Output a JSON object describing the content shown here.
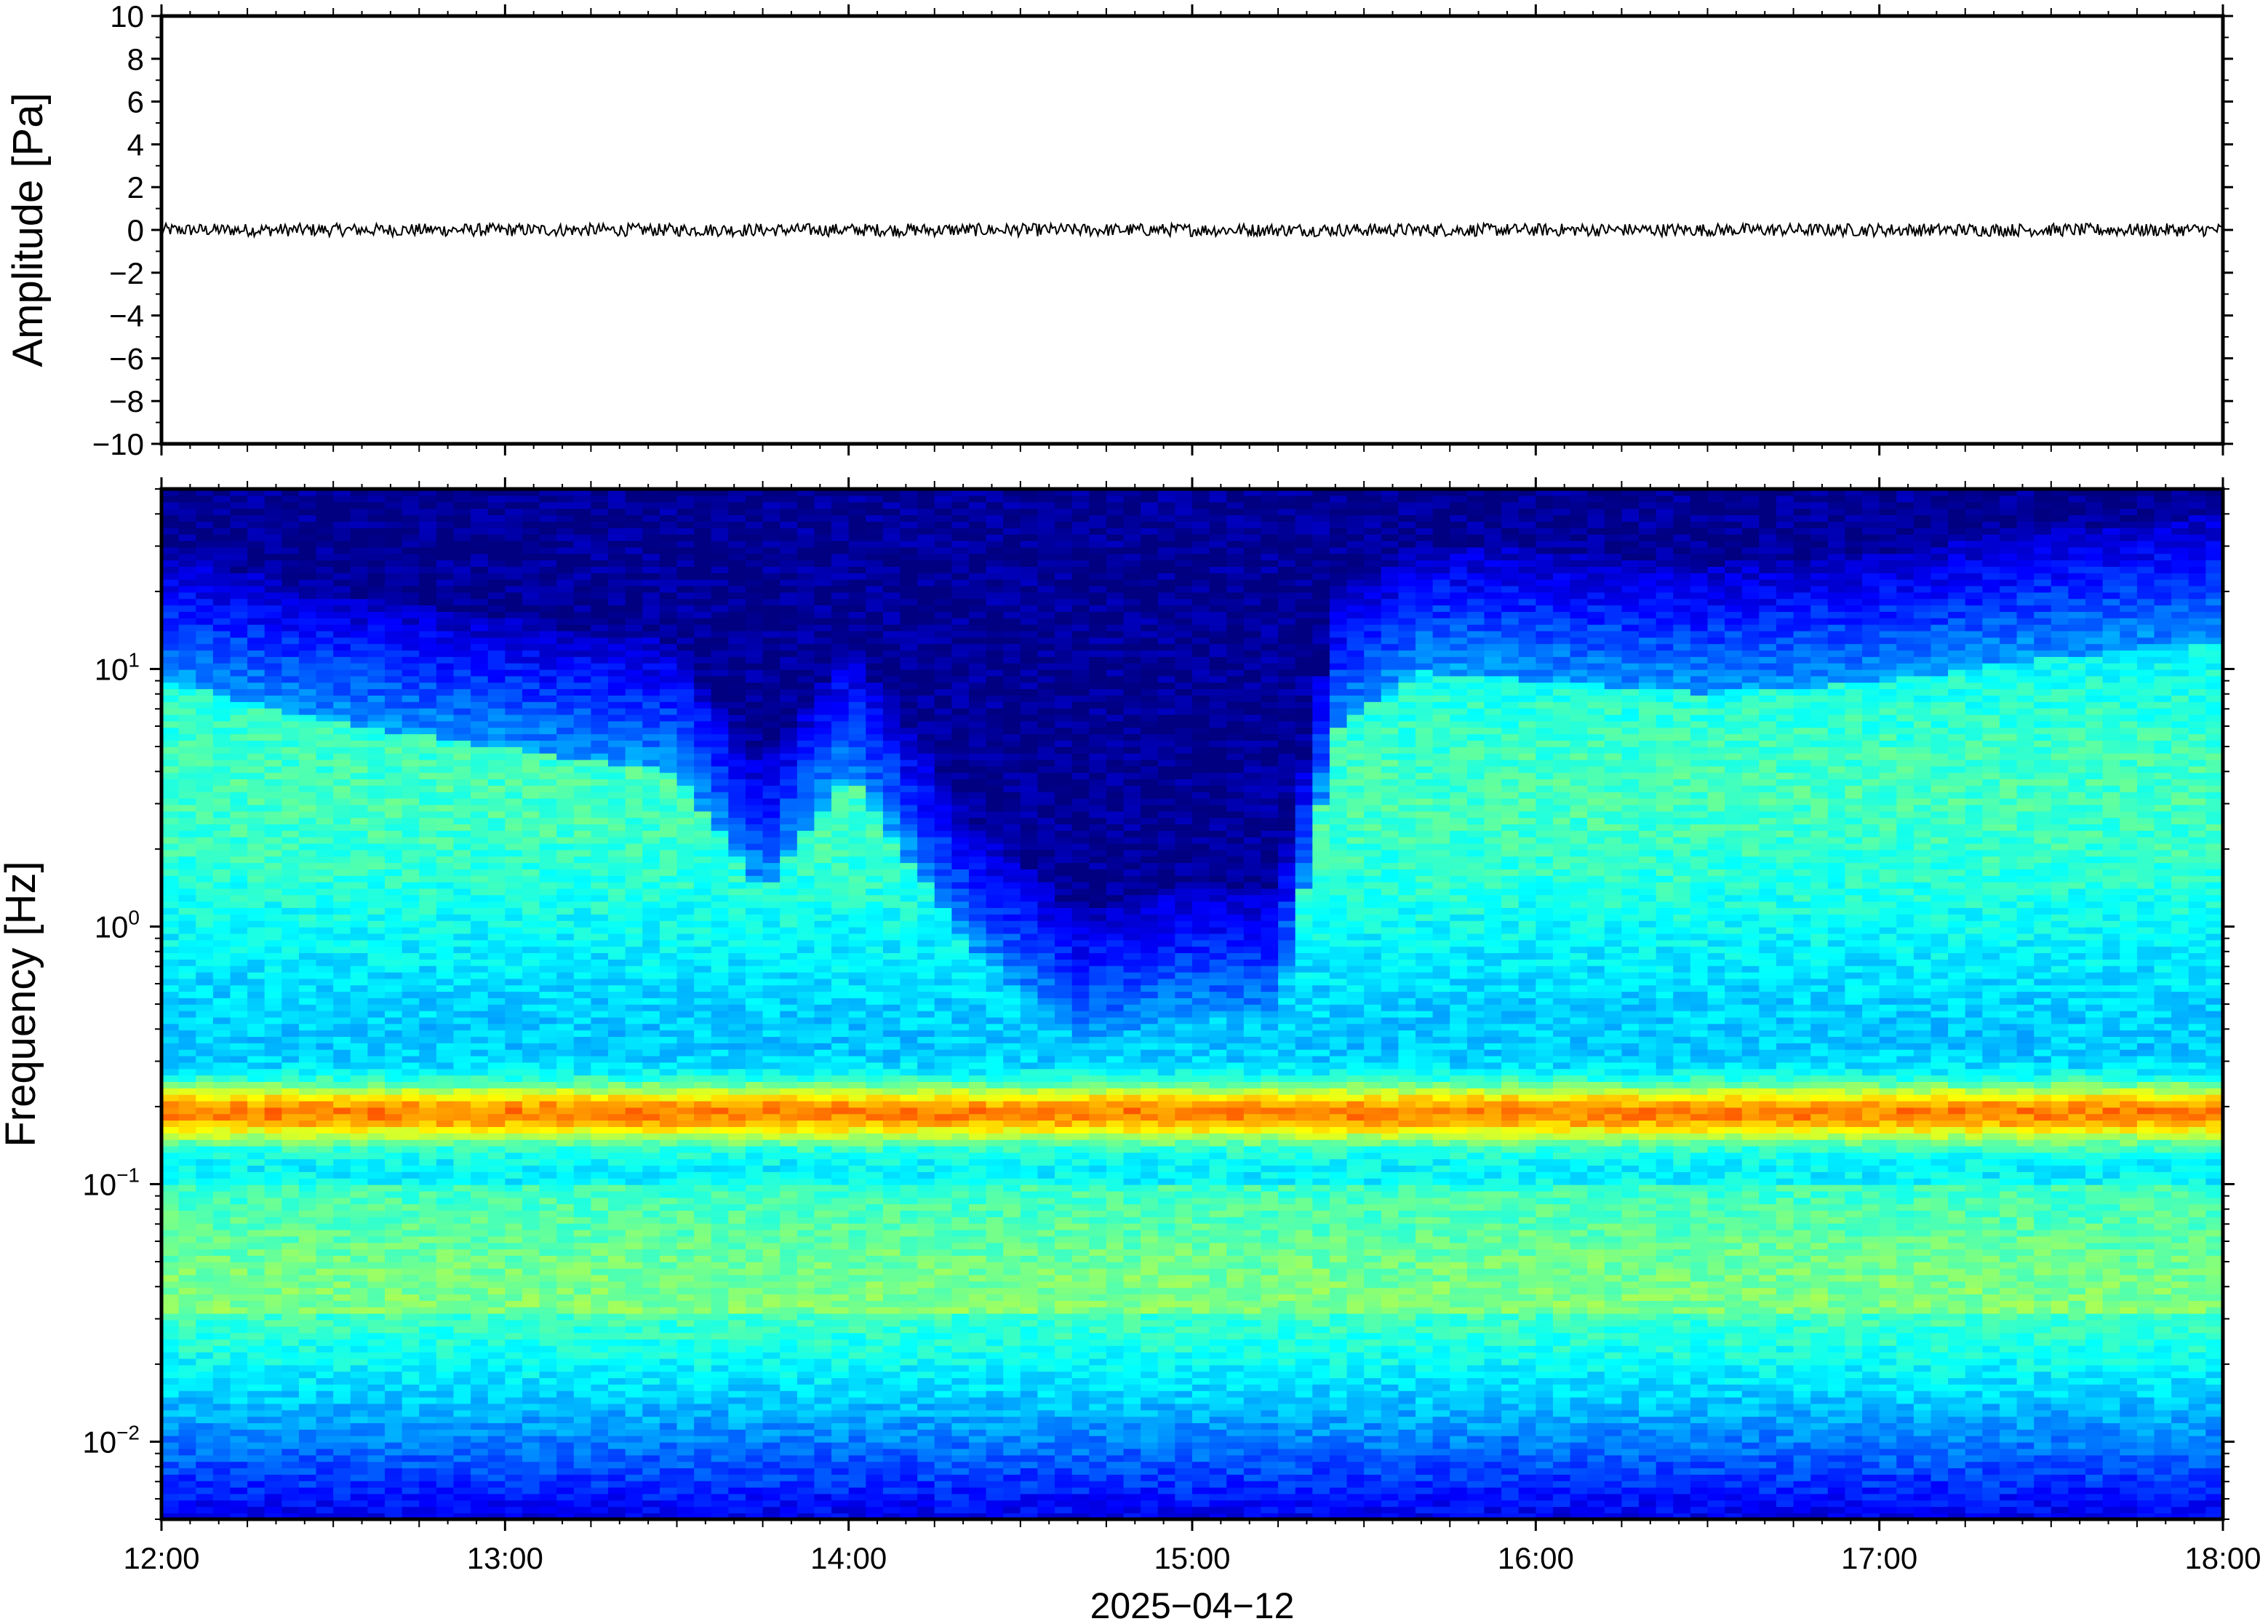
{
  "chart_data": [
    {
      "type": "line",
      "ylabel": "Amplitude [Pa]",
      "ylim": [
        -10,
        10
      ],
      "y_ticks": [
        "10",
        "8",
        "6",
        "4",
        "2",
        "0",
        "−2",
        "−4",
        "−6",
        "−8",
        "−10"
      ],
      "y_tick_values": [
        10,
        8,
        6,
        4,
        2,
        0,
        -2,
        -4,
        -6,
        -8,
        -10
      ],
      "xlim": [
        "12:00",
        "18:00"
      ],
      "series": [
        {
          "x": [
            "12:00",
            "13:00",
            "14:00",
            "15:00",
            "16:00",
            "17:00",
            "18:00"
          ],
          "y": [
            0,
            0,
            0,
            0,
            0,
            0,
            0
          ],
          "noise_amplitude": 0.3,
          "color": "#000000"
        }
      ],
      "grid": false
    },
    {
      "type": "heatmap",
      "ylabel": "Frequency [Hz]",
      "y_scale": "log",
      "ylim": [
        0.005,
        50
      ],
      "y_ticks": [
        {
          "base": "10",
          "exp": "−2",
          "value": 0.01
        },
        {
          "base": "10",
          "exp": "−1",
          "value": 0.1
        },
        {
          "base": "10",
          "exp": "0",
          "value": 1
        },
        {
          "base": "10",
          "exp": "1",
          "value": 10
        }
      ],
      "xlabel": "2025−04−12",
      "x_ticks": [
        "12:00",
        "13:00",
        "14:00",
        "15:00",
        "16:00",
        "17:00",
        "18:00"
      ],
      "colormap": "jet",
      "dominant_band_hz": 0.19,
      "quiet_period": [
        "14:15",
        "15:25"
      ],
      "upper_cutoff_hz": [
        {
          "time": "12:00",
          "hz": 20
        },
        {
          "time": "12:30",
          "hz": 14
        },
        {
          "time": "13:00",
          "hz": 11
        },
        {
          "time": "13:30",
          "hz": 9
        },
        {
          "time": "13:45",
          "hz": 3
        },
        {
          "time": "14:00",
          "hz": 9
        },
        {
          "time": "14:20",
          "hz": 2
        },
        {
          "time": "14:40",
          "hz": 0.8
        },
        {
          "time": "15:00",
          "hz": 1.0
        },
        {
          "time": "15:15",
          "hz": 1.0
        },
        {
          "time": "15:25",
          "hz": 13
        },
        {
          "time": "15:40",
          "hz": 22
        },
        {
          "time": "16:30",
          "hz": 18
        },
        {
          "time": "17:00",
          "hz": 20
        },
        {
          "time": "17:30",
          "hz": 25
        },
        {
          "time": "18:00",
          "hz": 28
        }
      ]
    }
  ],
  "colors": {
    "axis": "#000000",
    "background": "#ffffff"
  }
}
